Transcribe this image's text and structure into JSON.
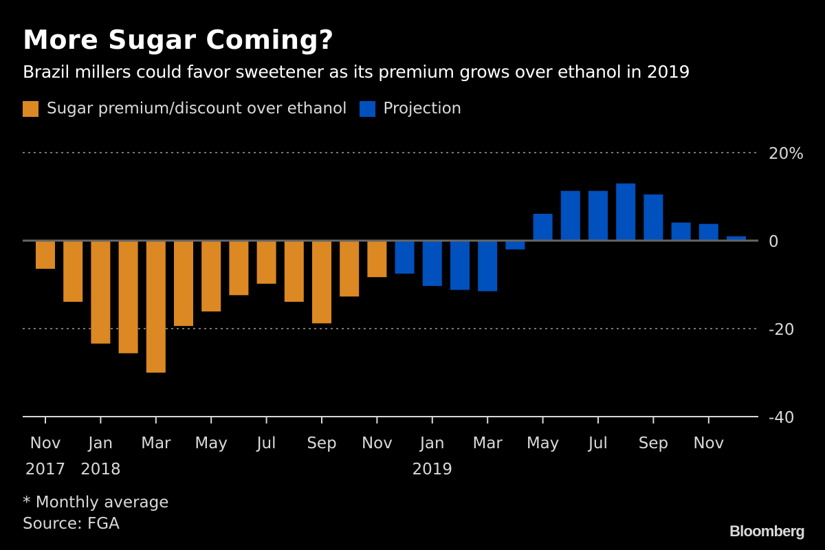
{
  "header": {
    "title": "More Sugar Coming?",
    "subtitle": "Brazil millers could favor sweetener as its premium grows over ethanol in 2019"
  },
  "legend": [
    {
      "label": "Sugar premium/discount over ethanol",
      "color": "#dc8823"
    },
    {
      "label": "Projection",
      "color": "#0050be"
    }
  ],
  "footer": {
    "note": "* Monthly average",
    "source": "Source: FGA",
    "brand": "Bloomberg"
  },
  "chart_data": {
    "type": "bar",
    "title": "More Sugar Coming?",
    "subtitle": "Brazil millers could favor sweetener as its premium grows over ethanol in 2019",
    "xlabel": "",
    "ylabel": "",
    "ylim": [
      -40,
      20
    ],
    "yticks": [
      20,
      0,
      -20,
      -40
    ],
    "ytick_labels": [
      "20%",
      "0",
      "-20",
      "-40"
    ],
    "grid": true,
    "legend_position": "top-left",
    "categories": [
      "Nov 2017",
      "Dec 2017",
      "Jan 2018",
      "Feb 2018",
      "Mar 2018",
      "Apr 2018",
      "May 2018",
      "Jun 2018",
      "Jul 2018",
      "Aug 2018",
      "Sep 2018",
      "Oct 2018",
      "Nov 2018",
      "Dec 2018",
      "Jan 2019",
      "Feb 2019",
      "Mar 2019",
      "Apr 2019",
      "May 2019",
      "Jun 2019",
      "Jul 2019",
      "Aug 2019",
      "Sep 2019",
      "Oct 2019",
      "Nov 2019",
      "Dec 2019"
    ],
    "xtick_labels": [
      {
        "index": 0,
        "month": "Nov",
        "year": "2017"
      },
      {
        "index": 2,
        "month": "Jan",
        "year": "2018"
      },
      {
        "index": 4,
        "month": "Mar",
        "year": ""
      },
      {
        "index": 6,
        "month": "May",
        "year": ""
      },
      {
        "index": 8,
        "month": "Jul",
        "year": ""
      },
      {
        "index": 10,
        "month": "Sep",
        "year": ""
      },
      {
        "index": 12,
        "month": "Nov",
        "year": ""
      },
      {
        "index": 14,
        "month": "Jan",
        "year": "2019"
      },
      {
        "index": 16,
        "month": "Mar",
        "year": ""
      },
      {
        "index": 18,
        "month": "May",
        "year": ""
      },
      {
        "index": 20,
        "month": "Jul",
        "year": ""
      },
      {
        "index": 22,
        "month": "Sep",
        "year": ""
      },
      {
        "index": 24,
        "month": "Nov",
        "year": ""
      }
    ],
    "series": [
      {
        "name": "Sugar premium/discount over ethanol",
        "color": "#dc8823",
        "start_index": 0,
        "values": [
          -6.4,
          -13.9,
          -23.4,
          -25.6,
          -30.0,
          -19.4,
          -16.1,
          -12.4,
          -9.8,
          -13.9,
          -18.8,
          -12.7,
          -8.3
        ]
      },
      {
        "name": "Projection",
        "color": "#0050be",
        "start_index": 13,
        "values": [
          -7.5,
          -10.3,
          -11.2,
          -11.5,
          -2.0,
          6.1,
          11.3,
          11.3,
          13.0,
          10.5,
          4.1,
          3.8,
          1.0
        ]
      }
    ]
  }
}
